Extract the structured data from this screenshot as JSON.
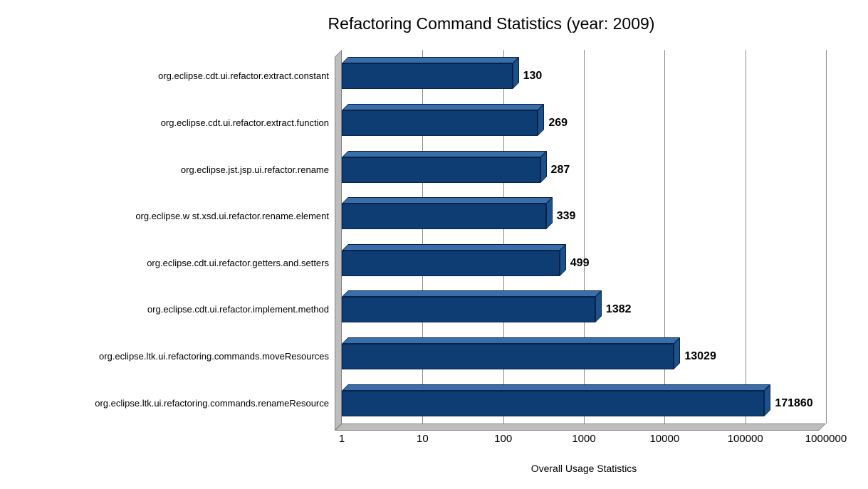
{
  "chart_data": {
    "type": "bar",
    "orientation": "horizontal",
    "scale": "log",
    "title": "Refactoring Command Statistics (year: 2009)",
    "xlabel": "Overall Usage Statistics",
    "ylabel": "",
    "categories": [
      "org.eclipse.cdt.ui.refactor.extract.constant",
      "org.eclipse.cdt.ui.refactor.extract.function",
      "org.eclipse.jst.jsp.ui.refactor.rename",
      "org.eclipse.w st.xsd.ui.refactor.rename.element",
      "org.eclipse.cdt.ui.refactor.getters.and.setters",
      "org.eclipse.cdt.ui.refactor.implement.method",
      "org.eclipse.ltk.ui.refactoring.commands.moveResources",
      "org.eclipse.ltk.ui.refactoring.commands.renameResource"
    ],
    "values": [
      130,
      269,
      287,
      339,
      499,
      1382,
      13029,
      171860
    ],
    "value_labels": [
      "130",
      "269",
      "287",
      "339",
      "499",
      "1382",
      "13029",
      "171860"
    ],
    "x_ticks": [
      "1",
      "10",
      "100",
      "1000",
      "10000",
      "100000",
      "1000000"
    ],
    "xlim": [
      1,
      1000000
    ],
    "grid": true,
    "legend": false,
    "bar_color": "#0d3d73",
    "bar_top_color": "#3a6ea8",
    "bar_side_color": "#1b518c",
    "wall_color": "#bdbdbd",
    "gridline_color": "#8c8c8c"
  }
}
